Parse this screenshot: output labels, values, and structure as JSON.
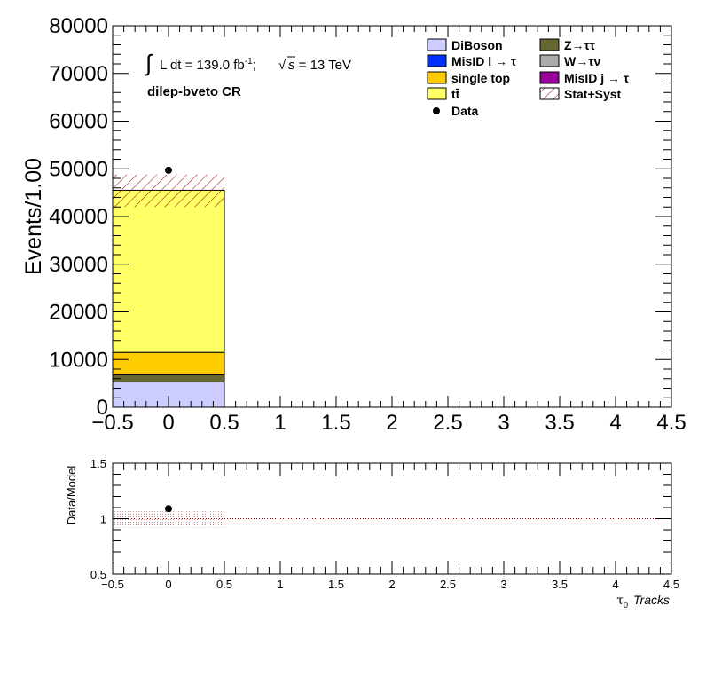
{
  "chart_data": [
    {
      "type": "bar",
      "stacked": true,
      "panel": "main",
      "ylabel": "Events/1.00",
      "xlim": [
        -0.5,
        4.5
      ],
      "ylim": [
        0,
        80000
      ],
      "x_ticks": [
        "−0.5",
        "0",
        "0.5",
        "1",
        "1.5",
        "2",
        "2.5",
        "3",
        "3.5",
        "4",
        "4.5"
      ],
      "y_ticks": [
        "0",
        "10000",
        "20000",
        "30000",
        "40000",
        "50000",
        "60000",
        "70000",
        "80000"
      ],
      "bins": [
        {
          "low": -0.5,
          "high": 0.5,
          "center": 0
        }
      ],
      "series": [
        {
          "name": "DiBoson",
          "color": "#ccccff",
          "values": [
            5300
          ]
        },
        {
          "name": "Z→ττ",
          "color": "#666633",
          "values": [
            1500
          ]
        },
        {
          "name": "single top",
          "color": "#ffcc00",
          "values": [
            4700
          ]
        },
        {
          "name": "tt̄",
          "color": "#ffff66",
          "values": [
            34000
          ]
        },
        {
          "name": "MisID l → τ",
          "color": "#0033ff",
          "values": [
            0
          ]
        },
        {
          "name": "W→τν",
          "color": "#aaaaaa",
          "values": [
            0
          ]
        },
        {
          "name": "MisID j → τ",
          "color": "#990099",
          "values": [
            0
          ]
        }
      ],
      "total_model": [
        45500
      ],
      "stat_syst_band": {
        "name": "Stat+Syst",
        "low": [
          42000
        ],
        "high": [
          48800
        ]
      },
      "data": {
        "name": "Data",
        "x": [
          0
        ],
        "y": [
          49700
        ]
      },
      "annotations": {
        "lumi_prefix": "L dt = 139.0 fb",
        "lumi_sup": "-1",
        "lumi_sep": ";",
        "energy_sqrt": "s",
        "energy_val": " = 13 TeV",
        "region": "dilep-bveto CR"
      },
      "legend_placement": "top-right",
      "legend_entries": [
        {
          "label": "DiBoson",
          "kind": "box",
          "color": "#ccccff"
        },
        {
          "label": "Z→ττ",
          "kind": "box",
          "color": "#666633"
        },
        {
          "label": "MisID l → τ",
          "kind": "box",
          "color": "#0033ff"
        },
        {
          "label": "W→τν",
          "kind": "box",
          "color": "#aaaaaa"
        },
        {
          "label": "single top",
          "kind": "box",
          "color": "#ffcc00"
        },
        {
          "label": "MisID j → τ",
          "kind": "box",
          "color": "#990099"
        },
        {
          "label": "tt̄",
          "kind": "box",
          "color": "#ffff66"
        },
        {
          "label": "Stat+Syst",
          "kind": "hatch",
          "color": "#990000"
        },
        {
          "label": "Data",
          "kind": "marker",
          "color": "#000000"
        }
      ]
    },
    {
      "type": "scatter",
      "panel": "ratio",
      "ylabel": "Data/Model",
      "xlabel_symbol": "τ",
      "xlabel_sub": "0",
      "xlabel_text": "Tracks",
      "xlim": [
        -0.5,
        4.5
      ],
      "ylim": [
        0.5,
        1.5
      ],
      "x_ticks": [
        "−0.5",
        "0",
        "0.5",
        "1",
        "1.5",
        "2",
        "2.5",
        "3",
        "3.5",
        "4",
        "4.5"
      ],
      "y_ticks": [
        "0.5",
        "1",
        "1.5"
      ],
      "reference_line": 1.0,
      "ratio_points": {
        "x": [
          0
        ],
        "y": [
          1.09
        ]
      },
      "ratio_band": {
        "x_low": [
          -0.5
        ],
        "x_high": [
          0.5
        ],
        "low": [
          0.92
        ],
        "high": [
          1.07
        ]
      }
    }
  ]
}
